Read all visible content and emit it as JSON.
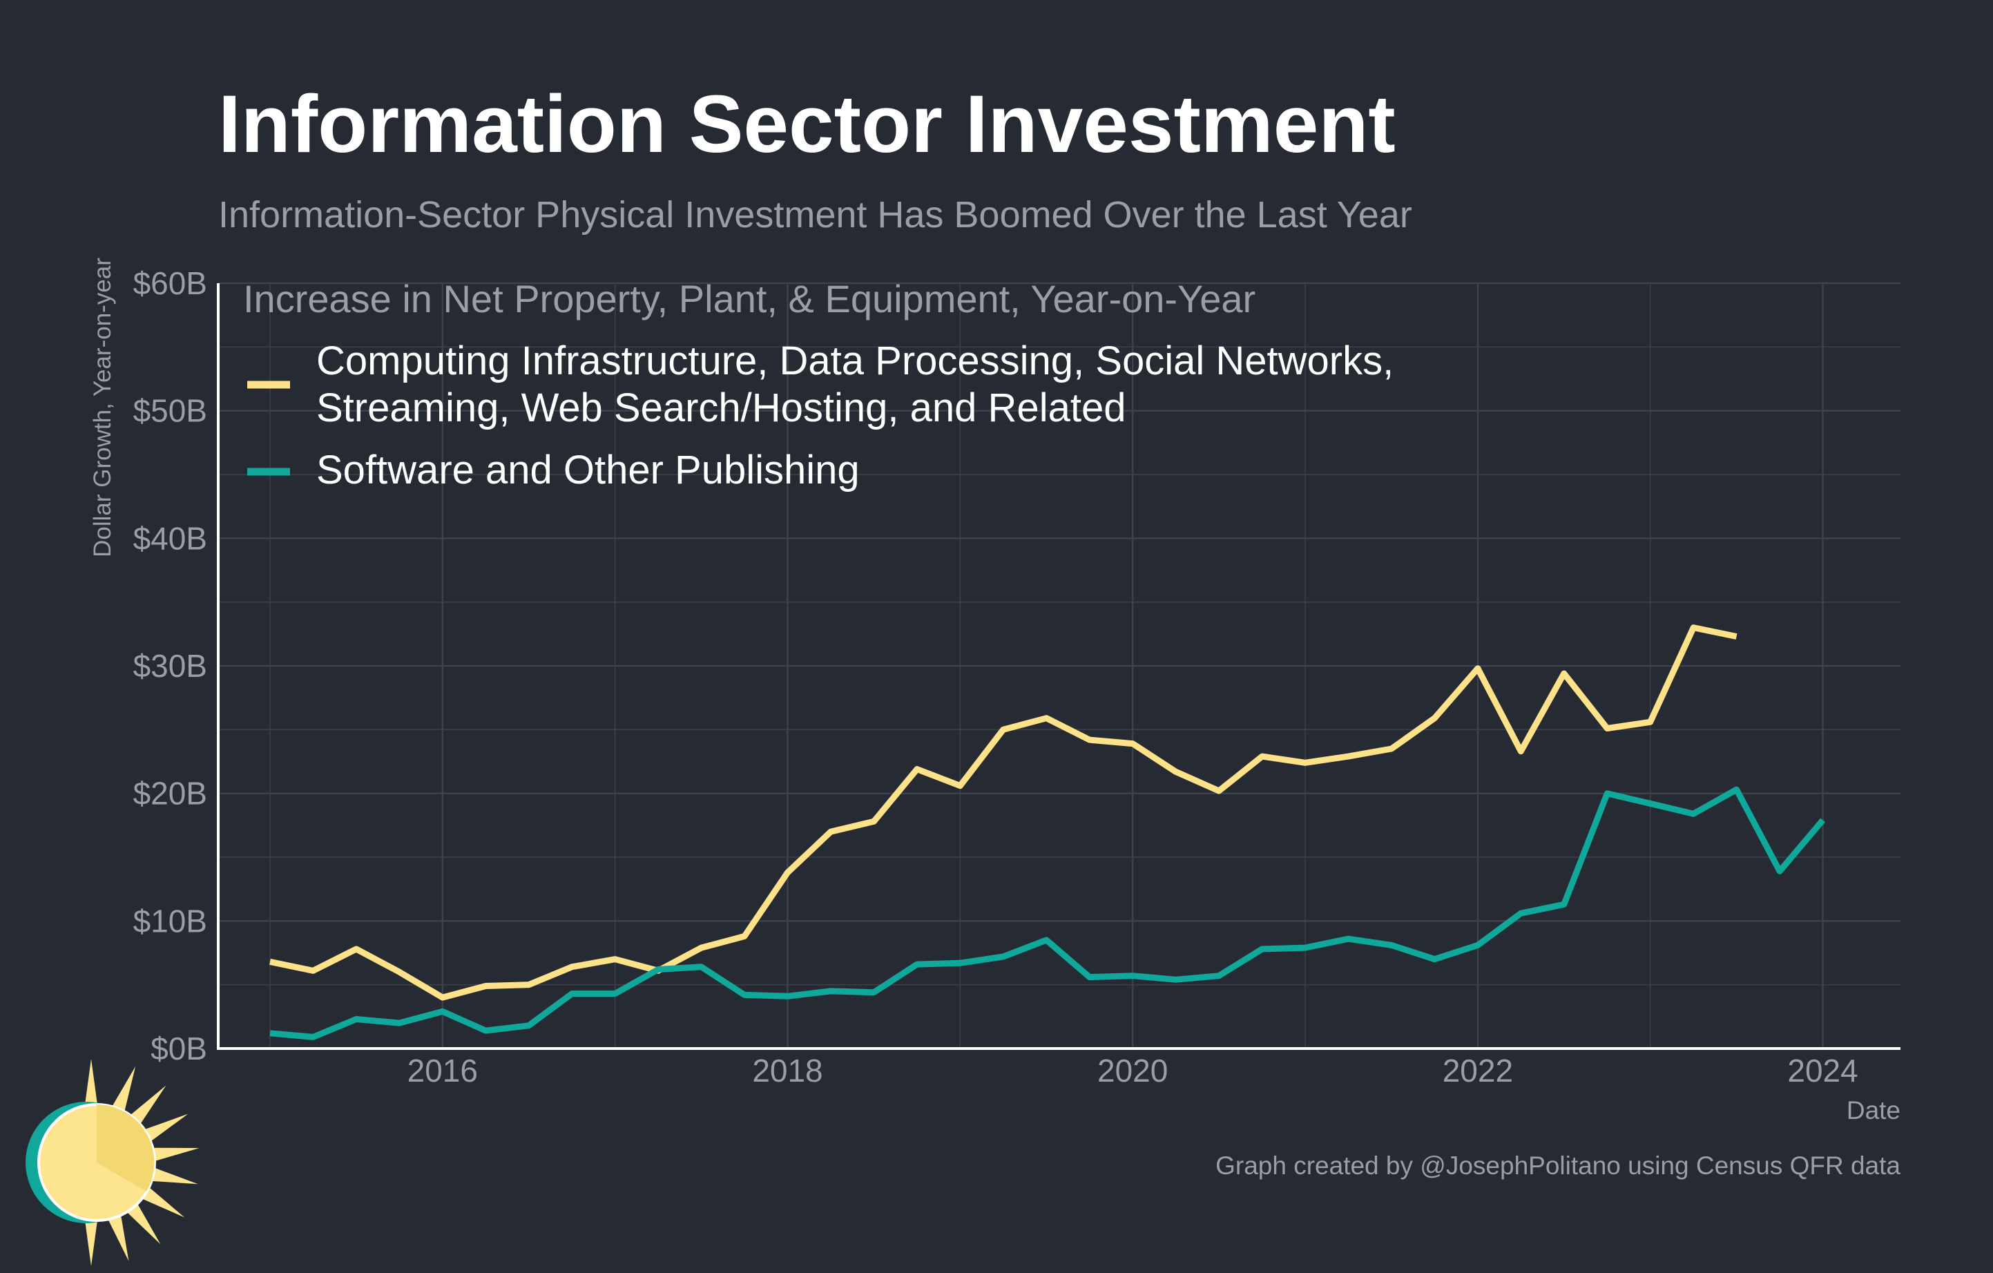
{
  "chart_data": {
    "type": "line",
    "title": "Information Sector Investment",
    "subtitle": "Information-Sector Physical Investment Has Boomed Over the Last Year",
    "legend_title": "Increase in Net Property, Plant, & Equipment, Year-on-Year",
    "legend_position": "top-left",
    "xlabel": "Date",
    "ylabel": "Dollar Growth, Year-on-year",
    "caption": "Graph created by @JosephPolitano using Census QFR data",
    "xlim": [
      2014.7,
      2024.45
    ],
    "ylim": [
      0,
      60
    ],
    "grid": true,
    "x_ticks": [
      2016,
      2018,
      2020,
      2022,
      2024
    ],
    "x_tick_labels": [
      "2016",
      "2018",
      "2020",
      "2022",
      "2024"
    ],
    "y_ticks": [
      0,
      10,
      20,
      30,
      40,
      50,
      60
    ],
    "y_tick_labels": [
      "$0B",
      "$10B",
      "$20B",
      "$30B",
      "$40B",
      "$50B",
      "$60B"
    ],
    "colors": {
      "background": "#252a33",
      "grid": "#3d434d",
      "axis": "#ffffff",
      "muted_text": "#9a9ea6"
    },
    "series": [
      {
        "name_lines": [
          "Computing Infrastructure, Data Processing, Social Networks,",
          "Streaming, Web Search/Hosting, and Related"
        ],
        "color": "#fde28a",
        "x": [
          2015.0,
          2015.25,
          2015.5,
          2015.75,
          2016.0,
          2016.25,
          2016.5,
          2016.75,
          2017.0,
          2017.25,
          2017.5,
          2017.75,
          2018.0,
          2018.25,
          2018.5,
          2018.75,
          2019.0,
          2019.25,
          2019.5,
          2019.75,
          2020.0,
          2020.25,
          2020.5,
          2020.75,
          2021.0,
          2021.25,
          2021.5,
          2021.75,
          2022.0,
          2022.25,
          2022.5,
          2022.75,
          2023.0,
          2023.25,
          2023.5
        ],
        "values": [
          6.8,
          6.1,
          7.8,
          6.0,
          4.0,
          4.9,
          5.0,
          6.4,
          7.0,
          6.1,
          7.9,
          8.8,
          13.8,
          17.0,
          17.8,
          21.9,
          20.6,
          25.0,
          25.9,
          24.2,
          23.9,
          21.7,
          20.2,
          22.9,
          22.4,
          22.9,
          23.5,
          25.9,
          29.8,
          23.3,
          29.4,
          25.1,
          25.6,
          33.0,
          32.3
        ]
      },
      {
        "name_lines": [
          "Software and Other Publishing"
        ],
        "color": "#0fa89a",
        "x": [
          2015.0,
          2015.25,
          2015.5,
          2015.75,
          2016.0,
          2016.25,
          2016.5,
          2016.75,
          2017.0,
          2017.25,
          2017.5,
          2017.75,
          2018.0,
          2018.25,
          2018.5,
          2018.75,
          2019.0,
          2019.25,
          2019.5,
          2019.75,
          2020.0,
          2020.25,
          2020.5,
          2020.75,
          2021.0,
          2021.25,
          2021.5,
          2021.75,
          2022.0,
          2022.25,
          2022.5,
          2022.75,
          2023.0,
          2023.25,
          2023.5,
          2023.75,
          2024.0
        ],
        "values": [
          1.2,
          0.9,
          2.3,
          2.0,
          2.9,
          1.4,
          1.8,
          4.3,
          4.3,
          6.2,
          6.4,
          4.2,
          4.1,
          4.5,
          4.4,
          6.6,
          6.7,
          7.2,
          8.5,
          5.6,
          5.7,
          5.4,
          5.7,
          7.8,
          7.9,
          8.6,
          8.1,
          7.0,
          8.1,
          10.6,
          11.3,
          20.0,
          19.2,
          18.4,
          20.3,
          13.9,
          17.9
        ]
      }
    ]
  }
}
